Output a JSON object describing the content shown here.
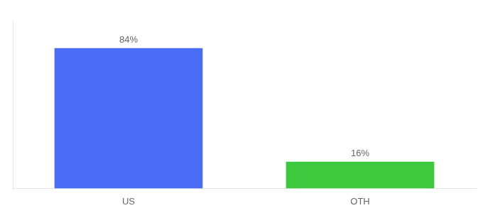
{
  "chart_data": {
    "type": "bar",
    "categories": [
      "US",
      "OTH"
    ],
    "values": [
      84,
      16
    ],
    "value_labels": [
      "84%",
      "16%"
    ],
    "data_labels": true,
    "colors": [
      "#4a6cf7",
      "#3dc93d"
    ],
    "ylim": [
      0,
      100
    ],
    "tick_labels": "x",
    "grid": false
  }
}
